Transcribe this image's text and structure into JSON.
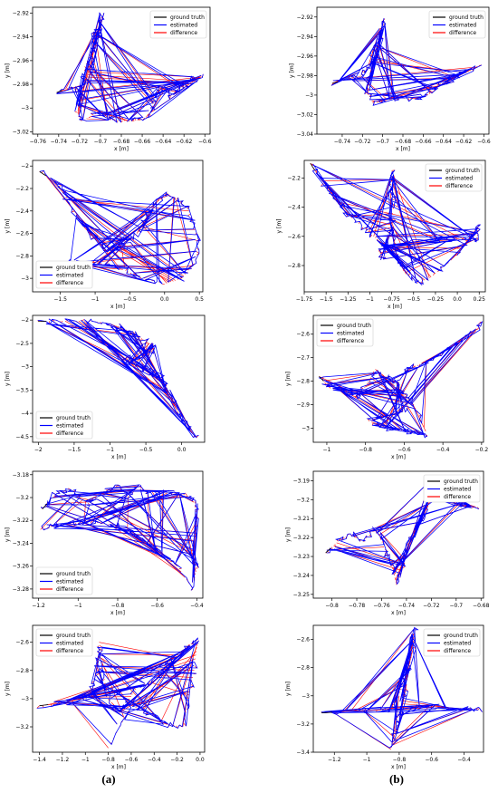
{
  "figure": {
    "captions": [
      "(a)",
      "(b)"
    ],
    "colors": {
      "ground_truth": "#000000",
      "estimated": "#0000ff",
      "difference": "#ff0000"
    }
  },
  "chart_data": [
    {
      "id": "a1",
      "type": "line",
      "xlabel": "x [m]",
      "ylabel": "y [m]",
      "xlim": [
        -0.765,
        -0.595
      ],
      "ylim": [
        -3.022,
        -2.915
      ],
      "xticks": [
        -0.76,
        -0.74,
        -0.72,
        -0.7,
        -0.68,
        -0.66,
        -0.64,
        -0.62,
        -0.6
      ],
      "yticks": [
        -2.92,
        -2.94,
        -2.96,
        -2.98,
        -3.0,
        -3.02
      ],
      "legend": {
        "position": "top-right",
        "entries": [
          "ground truth",
          "estimated",
          "difference"
        ]
      },
      "path": [
        [
          -0.742,
          -2.987
        ],
        [
          -0.728,
          -2.982
        ],
        [
          -0.719,
          -2.986
        ],
        [
          -0.712,
          -2.972
        ],
        [
          -0.706,
          -2.952
        ],
        [
          -0.707,
          -2.938
        ],
        [
          -0.702,
          -2.934
        ],
        [
          -0.699,
          -2.922
        ],
        [
          -0.705,
          -2.945
        ],
        [
          -0.715,
          -2.965
        ],
        [
          -0.719,
          -2.992
        ],
        [
          -0.722,
          -3.004
        ],
        [
          -0.718,
          -3.011
        ],
        [
          -0.7,
          -3.003
        ],
        [
          -0.69,
          -3.01
        ],
        [
          -0.672,
          -3.011
        ],
        [
          -0.66,
          -3.01
        ],
        [
          -0.651,
          -3.003
        ],
        [
          -0.648,
          -2.99
        ],
        [
          -0.64,
          -2.982
        ],
        [
          -0.633,
          -2.99
        ],
        [
          -0.625,
          -2.984
        ],
        [
          -0.617,
          -2.978
        ],
        [
          -0.608,
          -2.975
        ],
        [
          -0.602,
          -2.973
        ]
      ]
    },
    {
      "id": "b1",
      "type": "line",
      "xlabel": "x [m]",
      "ylabel": "y [m]",
      "xlim": [
        -0.765,
        -0.595
      ],
      "ylim": [
        -3.04,
        -2.91
      ],
      "xticks": [
        -0.74,
        -0.72,
        -0.7,
        -0.68,
        -0.66,
        -0.64,
        -0.62,
        -0.6
      ],
      "yticks": [
        -2.92,
        -2.94,
        -2.96,
        -2.98,
        -3.0,
        -3.02,
        -3.04
      ],
      "legend": {
        "position": "top-right",
        "entries": [
          "ground truth",
          "estimated",
          "difference"
        ]
      },
      "path": [
        [
          -0.75,
          -2.988
        ],
        [
          -0.735,
          -2.984
        ],
        [
          -0.722,
          -2.98
        ],
        [
          -0.715,
          -2.972
        ],
        [
          -0.708,
          -2.955
        ],
        [
          -0.703,
          -2.938
        ],
        [
          -0.698,
          -2.922
        ],
        [
          -0.705,
          -2.95
        ],
        [
          -0.712,
          -2.975
        ],
        [
          -0.716,
          -2.995
        ],
        [
          -0.71,
          -3.008
        ],
        [
          -0.695,
          -3.005
        ],
        [
          -0.68,
          -3.003
        ],
        [
          -0.665,
          -3.004
        ],
        [
          -0.652,
          -2.998
        ],
        [
          -0.645,
          -2.99
        ],
        [
          -0.635,
          -2.985
        ],
        [
          -0.625,
          -2.98
        ],
        [
          -0.615,
          -2.975
        ],
        [
          -0.605,
          -2.97
        ]
      ]
    },
    {
      "id": "a2",
      "type": "line",
      "xlabel": "x [m]",
      "ylabel": "y [m]",
      "xlim": [
        -1.9,
        0.55
      ],
      "ylim": [
        -3.12,
        -1.95
      ],
      "xticks": [
        -1.5,
        -1.0,
        -0.5,
        0.0,
        0.5
      ],
      "yticks": [
        -2.0,
        -2.2,
        -2.4,
        -2.6,
        -2.8,
        -3.0
      ],
      "legend": {
        "position": "bottom-left",
        "entries": [
          "ground truth",
          "estimated",
          "difference"
        ]
      },
      "path": [
        [
          -1.8,
          -2.05
        ],
        [
          -1.55,
          -2.15
        ],
        [
          -1.3,
          -2.4
        ],
        [
          -1.05,
          -2.62
        ],
        [
          -0.85,
          -2.75
        ],
        [
          -0.7,
          -2.72
        ],
        [
          -0.55,
          -2.68
        ],
        [
          -0.4,
          -2.6
        ],
        [
          -0.3,
          -2.5
        ],
        [
          -0.15,
          -2.35
        ],
        [
          0.0,
          -2.25
        ],
        [
          0.15,
          -2.28
        ],
        [
          0.35,
          -2.4
        ],
        [
          0.48,
          -2.62
        ],
        [
          0.45,
          -2.85
        ],
        [
          0.25,
          -3.0
        ],
        [
          0.0,
          -3.05
        ],
        [
          -0.3,
          -3.0
        ],
        [
          -0.6,
          -2.92
        ],
        [
          -0.9,
          -2.88
        ],
        [
          -1.2,
          -2.85
        ],
        [
          -1.4,
          -2.86
        ]
      ]
    },
    {
      "id": "b2",
      "type": "line",
      "xlabel": "x [m]",
      "ylabel": "y [m]",
      "xlim": [
        -1.75,
        0.32
      ],
      "ylim": [
        -2.98,
        -2.08
      ],
      "xticks": [
        -1.75,
        -1.5,
        -1.25,
        -1.0,
        -0.75,
        -0.5,
        -0.25,
        0.0,
        0.25
      ],
      "yticks": [
        -2.2,
        -2.4,
        -2.6,
        -2.8
      ],
      "legend": {
        "position": "top-right",
        "entries": [
          "ground truth",
          "estimated",
          "difference"
        ]
      },
      "path": [
        [
          -1.68,
          -2.1
        ],
        [
          -1.55,
          -2.22
        ],
        [
          -1.4,
          -2.35
        ],
        [
          -1.25,
          -2.45
        ],
        [
          -1.05,
          -2.55
        ],
        [
          -0.9,
          -2.63
        ],
        [
          -0.8,
          -2.66
        ],
        [
          -0.77,
          -2.55
        ],
        [
          -0.76,
          -2.3
        ],
        [
          -0.75,
          -2.15
        ],
        [
          -0.74,
          -2.35
        ],
        [
          -0.73,
          -2.6
        ],
        [
          -0.7,
          -2.75
        ],
        [
          -0.6,
          -2.85
        ],
        [
          -0.45,
          -2.92
        ],
        [
          -0.3,
          -2.88
        ],
        [
          -0.1,
          -2.78
        ],
        [
          0.1,
          -2.65
        ],
        [
          0.25,
          -2.52
        ],
        [
          0.22,
          -2.62
        ],
        [
          0.0,
          -2.62
        ],
        [
          -0.4,
          -2.63
        ],
        [
          -0.8,
          -2.66
        ],
        [
          -0.9,
          -2.7
        ],
        [
          -0.85,
          -2.75
        ]
      ]
    },
    {
      "id": "a3",
      "type": "line",
      "xlabel": "x [m]",
      "ylabel": "y [m]",
      "xlim": [
        -2.08,
        0.32
      ],
      "ylim": [
        -4.62,
        -1.9
      ],
      "xticks": [
        -2.0,
        -1.5,
        -1.0,
        -0.5,
        0.0
      ],
      "yticks": [
        -2.0,
        -2.5,
        -3.0,
        -3.5,
        -4.0,
        -4.5
      ],
      "legend": {
        "position": "bottom-left",
        "entries": [
          "ground truth",
          "estimated",
          "difference"
        ]
      },
      "path": [
        [
          -2.0,
          -2.03
        ],
        [
          -1.7,
          -2.02
        ],
        [
          -1.4,
          -2.02
        ],
        [
          -1.1,
          -2.05
        ],
        [
          -0.85,
          -2.15
        ],
        [
          -0.65,
          -2.3
        ],
        [
          -0.5,
          -2.45
        ],
        [
          -0.4,
          -2.55
        ],
        [
          -0.45,
          -2.72
        ],
        [
          -0.6,
          -2.78
        ],
        [
          -0.8,
          -2.82
        ],
        [
          -0.7,
          -2.9
        ],
        [
          -0.55,
          -3.05
        ],
        [
          -0.4,
          -3.15
        ],
        [
          -0.3,
          -3.2
        ],
        [
          -0.2,
          -3.45
        ],
        [
          -0.1,
          -3.85
        ],
        [
          0.05,
          -4.2
        ],
        [
          0.2,
          -4.52
        ]
      ]
    },
    {
      "id": "b3",
      "type": "line",
      "xlabel": "x [m]",
      "ylabel": "y [m]",
      "xlim": [
        -1.07,
        -0.19
      ],
      "ylim": [
        -3.06,
        -2.52
      ],
      "xticks": [
        -1.0,
        -0.8,
        -0.6,
        -0.4,
        -0.2
      ],
      "yticks": [
        -2.6,
        -2.7,
        -2.8,
        -2.9,
        -3.0
      ],
      "legend": {
        "position": "top-left",
        "entries": [
          "ground truth",
          "estimated",
          "difference"
        ]
      },
      "path": [
        [
          -1.04,
          -2.78
        ],
        [
          -0.98,
          -2.83
        ],
        [
          -0.9,
          -2.84
        ],
        [
          -0.85,
          -2.87
        ],
        [
          -0.8,
          -2.82
        ],
        [
          -0.75,
          -2.75
        ],
        [
          -0.7,
          -2.78
        ],
        [
          -0.65,
          -2.8
        ],
        [
          -0.6,
          -2.85
        ],
        [
          -0.58,
          -2.92
        ],
        [
          -0.65,
          -2.94
        ],
        [
          -0.72,
          -2.95
        ],
        [
          -0.78,
          -2.97
        ],
        [
          -0.7,
          -3.0
        ],
        [
          -0.6,
          -3.01
        ],
        [
          -0.52,
          -3.02
        ],
        [
          -0.48,
          -3.03
        ],
        [
          -0.55,
          -2.9
        ],
        [
          -0.65,
          -2.82
        ],
        [
          -0.58,
          -2.75
        ],
        [
          -0.5,
          -2.72
        ],
        [
          -0.4,
          -2.68
        ],
        [
          -0.3,
          -2.62
        ],
        [
          -0.22,
          -2.58
        ],
        [
          -0.21,
          -2.55
        ]
      ]
    },
    {
      "id": "a4",
      "type": "line",
      "xlabel": "x [m]",
      "ylabel": "y [m]",
      "xlim": [
        -1.23,
        -0.37
      ],
      "ylim": [
        -3.288,
        -3.177
      ],
      "xticks": [
        -1.2,
        -1.0,
        -0.8,
        -0.6,
        -0.4
      ],
      "yticks": [
        -3.18,
        -3.2,
        -3.22,
        -3.24,
        -3.26,
        -3.28
      ],
      "legend": {
        "position": "bottom-left",
        "entries": [
          "ground truth",
          "estimated",
          "difference"
        ]
      },
      "path": [
        [
          -1.18,
          -3.21
        ],
        [
          -1.12,
          -3.198
        ],
        [
          -1.05,
          -3.192
        ],
        [
          -0.95,
          -3.205
        ],
        [
          -0.88,
          -3.195
        ],
        [
          -0.8,
          -3.19
        ],
        [
          -0.74,
          -3.2
        ],
        [
          -0.7,
          -3.19
        ],
        [
          -0.65,
          -3.195
        ],
        [
          -0.55,
          -3.196
        ],
        [
          -0.45,
          -3.198
        ],
        [
          -0.41,
          -3.205
        ],
        [
          -0.4,
          -3.22
        ],
        [
          -0.42,
          -3.24
        ],
        [
          -0.4,
          -3.26
        ],
        [
          -0.42,
          -3.28
        ],
        [
          -0.5,
          -3.26
        ],
        [
          -0.6,
          -3.245
        ],
        [
          -0.7,
          -3.235
        ],
        [
          -0.8,
          -3.225
        ],
        [
          -0.9,
          -3.222
        ],
        [
          -1.0,
          -3.222
        ],
        [
          -1.1,
          -3.224
        ],
        [
          -1.19,
          -3.228
        ]
      ]
    },
    {
      "id": "b4",
      "type": "line",
      "xlabel": "x [m]",
      "ylabel": "y [m]",
      "xlim": [
        -0.815,
        -0.678
      ],
      "ylim": [
        -3.252,
        -3.185
      ],
      "xticks": [
        -0.8,
        -0.78,
        -0.76,
        -0.74,
        -0.72,
        -0.7,
        -0.68
      ],
      "yticks": [
        -3.19,
        -3.2,
        -3.21,
        -3.22,
        -3.23,
        -3.24,
        -3.25
      ],
      "legend": {
        "position": "top-right",
        "entries": [
          "ground truth",
          "estimated",
          "difference"
        ]
      },
      "path": [
        [
          -0.805,
          -3.228
        ],
        [
          -0.795,
          -3.222
        ],
        [
          -0.785,
          -3.218
        ],
        [
          -0.775,
          -3.222
        ],
        [
          -0.765,
          -3.215
        ],
        [
          -0.758,
          -3.225
        ],
        [
          -0.752,
          -3.235
        ],
        [
          -0.748,
          -3.245
        ],
        [
          -0.742,
          -3.235
        ],
        [
          -0.738,
          -3.222
        ],
        [
          -0.732,
          -3.215
        ],
        [
          -0.725,
          -3.208
        ],
        [
          -0.72,
          -3.198
        ],
        [
          -0.722,
          -3.19
        ],
        [
          -0.715,
          -3.195
        ],
        [
          -0.708,
          -3.2
        ],
        [
          -0.7,
          -3.202
        ],
        [
          -0.692,
          -3.203
        ],
        [
          -0.683,
          -3.204
        ]
      ]
    },
    {
      "id": "a5",
      "type": "line",
      "xlabel": "x [m]",
      "ylabel": "y [m]",
      "xlim": [
        -1.46,
        0.04
      ],
      "ylim": [
        -3.38,
        -2.48
      ],
      "xticks": [
        -1.4,
        -1.2,
        -1.0,
        -0.8,
        -0.6,
        -0.4,
        -0.2,
        0.0
      ],
      "yticks": [
        -2.6,
        -2.8,
        -3.0,
        -3.2
      ],
      "legend": {
        "position": "top-left",
        "entries": [
          "ground truth",
          "estimated",
          "difference"
        ]
      },
      "path": [
        [
          -1.4,
          -3.05
        ],
        [
          -1.2,
          -3.03
        ],
        [
          -1.05,
          -3.0
        ],
        [
          -0.95,
          -2.95
        ],
        [
          -0.9,
          -2.8
        ],
        [
          -0.88,
          -2.6
        ],
        [
          -0.85,
          -2.78
        ],
        [
          -0.8,
          -3.0
        ],
        [
          -0.7,
          -3.1
        ],
        [
          -0.65,
          -3.05
        ],
        [
          -0.55,
          -2.92
        ],
        [
          -0.4,
          -2.88
        ],
        [
          -0.3,
          -2.75
        ],
        [
          -0.2,
          -2.7
        ],
        [
          -0.1,
          -2.62
        ],
        [
          -0.02,
          -2.58
        ],
        [
          -0.05,
          -2.8
        ],
        [
          -0.1,
          -3.0
        ],
        [
          -0.15,
          -3.2
        ],
        [
          -0.3,
          -3.18
        ],
        [
          -0.45,
          -3.1
        ],
        [
          -0.6,
          -3.05
        ],
        [
          -0.8,
          -3.35
        ]
      ]
    },
    {
      "id": "b5",
      "type": "line",
      "xlabel": "x [m]",
      "ylabel": "y [m]",
      "xlim": [
        -1.33,
        -0.28
      ],
      "ylim": [
        -3.4,
        -2.5
      ],
      "xticks": [
        -1.2,
        -1.0,
        -0.8,
        -0.6,
        -0.4
      ],
      "yticks": [
        -2.6,
        -2.8,
        -3.0,
        -3.2,
        -3.4
      ],
      "legend": {
        "position": "top-right",
        "entries": [
          "ground truth",
          "estimated",
          "difference"
        ]
      },
      "path": [
        [
          -1.28,
          -3.12
        ],
        [
          -1.1,
          -3.11
        ],
        [
          -0.95,
          -3.1
        ],
        [
          -0.85,
          -3.1
        ],
        [
          -0.8,
          -3.0
        ],
        [
          -0.75,
          -2.8
        ],
        [
          -0.72,
          -2.62
        ],
        [
          -0.7,
          -2.52
        ],
        [
          -0.72,
          -2.7
        ],
        [
          -0.76,
          -2.95
        ],
        [
          -0.8,
          -3.12
        ],
        [
          -0.83,
          -3.25
        ],
        [
          -0.85,
          -3.38
        ],
        [
          -0.8,
          -3.15
        ],
        [
          -0.7,
          -3.08
        ],
        [
          -0.55,
          -3.08
        ],
        [
          -0.4,
          -3.09
        ],
        [
          -0.3,
          -3.1
        ]
      ]
    }
  ]
}
